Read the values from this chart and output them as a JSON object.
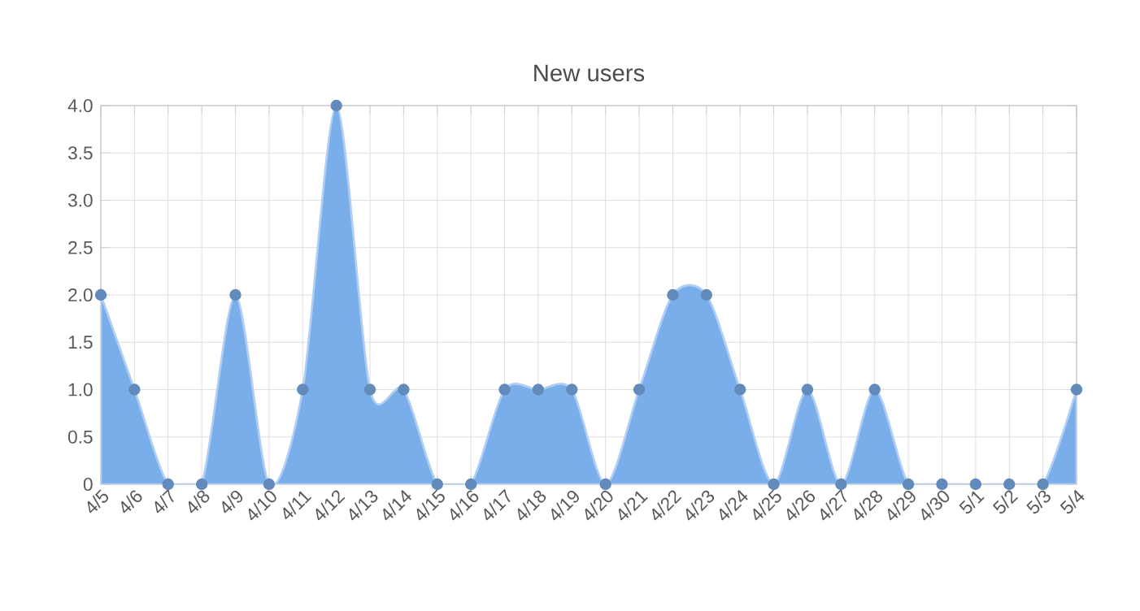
{
  "chart_data": {
    "type": "area",
    "title": "New users",
    "categories": [
      "4/5",
      "4/6",
      "4/7",
      "4/8",
      "4/9",
      "4/10",
      "4/11",
      "4/12",
      "4/13",
      "4/14",
      "4/15",
      "4/16",
      "4/17",
      "4/18",
      "4/19",
      "4/20",
      "4/21",
      "4/22",
      "4/23",
      "4/24",
      "4/25",
      "4/26",
      "4/27",
      "4/28",
      "4/29",
      "4/30",
      "5/1",
      "5/2",
      "5/3",
      "5/4"
    ],
    "series": [
      {
        "color": "#7aaeea",
        "values": [
          2,
          1,
          0,
          0,
          2,
          0,
          1,
          4,
          1,
          1,
          0,
          0,
          1,
          1,
          1,
          0,
          1,
          2,
          2,
          1,
          0,
          1,
          0,
          1,
          0,
          0,
          0,
          0,
          0,
          1
        ]
      }
    ],
    "ylim": [
      0,
      4
    ],
    "yticks": [
      0,
      0.5,
      {
        "value": 1,
        "label": "1.0"
      },
      1.5,
      {
        "value": 2,
        "label": "2.0"
      },
      2.5,
      {
        "value": 3,
        "label": "3.0"
      },
      3.5,
      {
        "value": 4,
        "label": "4.0"
      }
    ],
    "grid": true,
    "marker": "circle"
  }
}
